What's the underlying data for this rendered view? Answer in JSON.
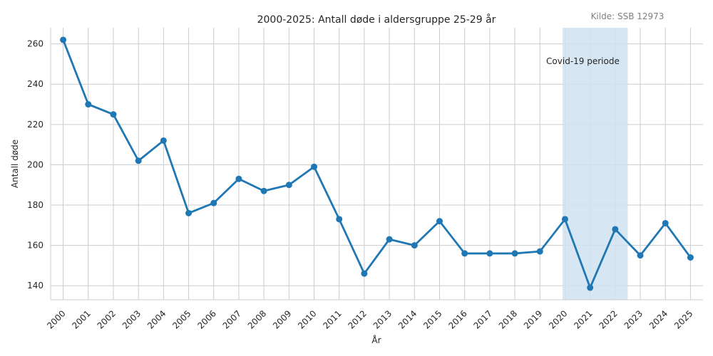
{
  "source_label": "Kilde: SSB 12973",
  "chart_data": {
    "type": "line",
    "title": "2000-2025: Antall døde i aldersgruppe 25-29 år",
    "xlabel": "År",
    "ylabel": "Antall døde",
    "x": [
      2000,
      2001,
      2002,
      2003,
      2004,
      2005,
      2006,
      2007,
      2008,
      2009,
      2010,
      2011,
      2012,
      2013,
      2014,
      2015,
      2016,
      2017,
      2018,
      2019,
      2020,
      2021,
      2022,
      2023,
      2024,
      2025
    ],
    "series": [
      {
        "values": [
          262,
          230,
          225,
          202,
          212,
          176,
          181,
          193,
          187,
          190,
          199,
          173,
          146,
          163,
          160,
          172,
          156,
          156,
          156,
          157,
          173,
          139,
          168,
          155,
          171,
          154
        ],
        "color": "#1f77b4"
      }
    ],
    "ylim": [
      133,
      268
    ],
    "xlim": [
      1999.5,
      2025.5
    ],
    "yticks": [
      140,
      160,
      180,
      200,
      220,
      240,
      260
    ],
    "grid": true,
    "highlight": {
      "start": 2019.9,
      "end": 2022.5,
      "label": "Covid-19 periode",
      "label_x": 2019.25,
      "label_y": 250,
      "color": "#cfe2f0"
    }
  }
}
